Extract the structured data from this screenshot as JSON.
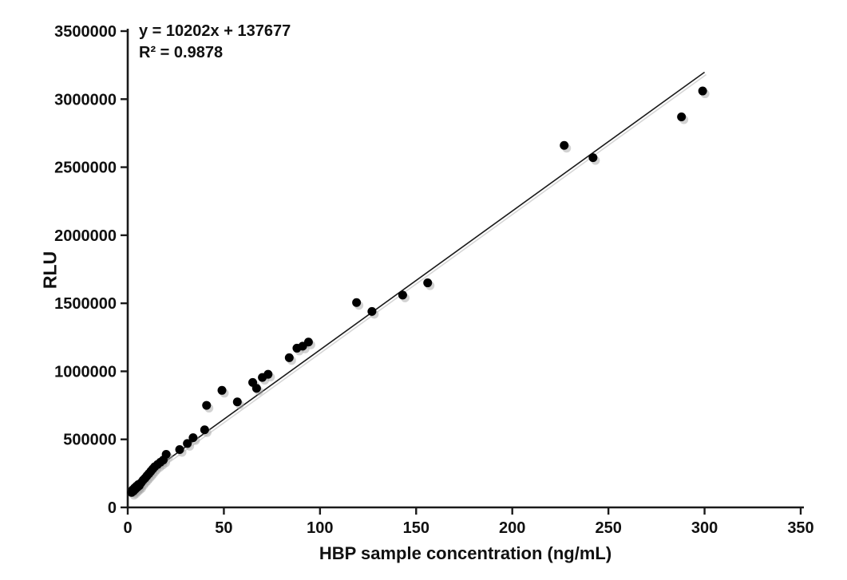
{
  "chart_data": {
    "type": "scatter",
    "title": "",
    "xlabel": "HBP sample concentration (ng/mL)",
    "ylabel": "RLU",
    "xlim": [
      0,
      350
    ],
    "ylim": [
      0,
      3500000
    ],
    "xticks": [
      0,
      50,
      100,
      150,
      200,
      250,
      300,
      350
    ],
    "yticks": [
      0,
      500000,
      1000000,
      1500000,
      2000000,
      2500000,
      3000000,
      3500000
    ],
    "grid": false,
    "legend": "none",
    "annotation": {
      "equation": "y = 10202x + 137677",
      "r_squared": "R² = 0.9878"
    },
    "trendline": {
      "slope": 10202,
      "intercept": 137677,
      "x_start": 2,
      "x_end": 300,
      "color": "#1a1a1a"
    },
    "marker": {
      "color": "#000000",
      "shadow_color": "#a6a6a6",
      "radius": 5.5
    },
    "axis_color": "#1a1a1a",
    "points": [
      [
        2,
        110000
      ],
      [
        2.5,
        128000
      ],
      [
        3,
        120000
      ],
      [
        3.5,
        142000
      ],
      [
        4,
        135000
      ],
      [
        4.5,
        155000
      ],
      [
        5,
        148000
      ],
      [
        5.5,
        168000
      ],
      [
        6,
        160000
      ],
      [
        7,
        182000
      ],
      [
        8,
        200000
      ],
      [
        9,
        215000
      ],
      [
        10,
        232000
      ],
      [
        11,
        248000
      ],
      [
        12,
        265000
      ],
      [
        13,
        282000
      ],
      [
        14,
        298000
      ],
      [
        15.5,
        315000
      ],
      [
        17,
        332000
      ],
      [
        18.5,
        348000
      ],
      [
        20,
        390000
      ],
      [
        27,
        425000
      ],
      [
        31,
        470000
      ],
      [
        34,
        512000
      ],
      [
        40,
        570000
      ],
      [
        41,
        750000
      ],
      [
        49,
        860000
      ],
      [
        57,
        775000
      ],
      [
        65,
        918000
      ],
      [
        67,
        875000
      ],
      [
        70,
        955000
      ],
      [
        73,
        978000
      ],
      [
        84,
        1100000
      ],
      [
        88,
        1170000
      ],
      [
        91,
        1185000
      ],
      [
        94,
        1215000
      ],
      [
        119,
        1505000
      ],
      [
        127,
        1440000
      ],
      [
        143,
        1560000
      ],
      [
        156,
        1650000
      ],
      [
        227,
        2660000
      ],
      [
        242,
        2570000
      ],
      [
        288,
        2870000
      ],
      [
        299,
        3060000
      ]
    ]
  }
}
